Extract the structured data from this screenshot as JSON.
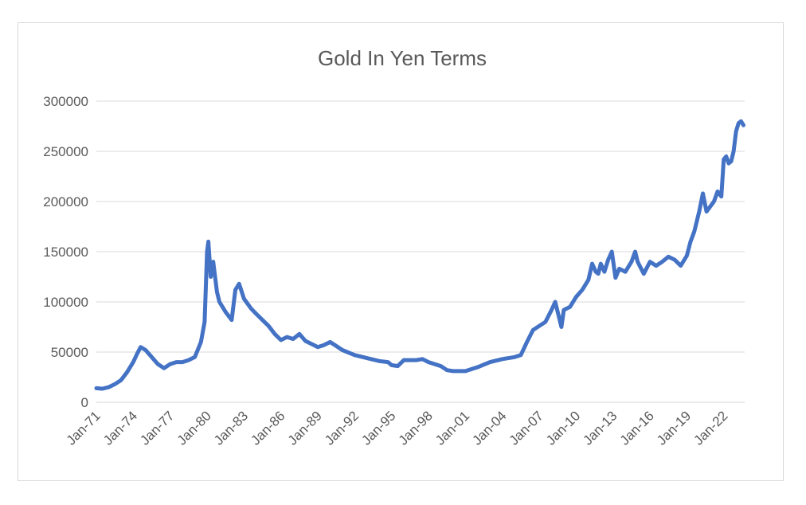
{
  "chart_data": {
    "type": "line",
    "title": "Gold In Yen Terms",
    "xlabel": "",
    "ylabel": "",
    "ylim": [
      0,
      300000
    ],
    "y_ticks": [
      "0",
      "50000",
      "100000",
      "150000",
      "200000",
      "250000",
      "300000"
    ],
    "x_ticks": [
      "Jan-71",
      "Jan-74",
      "Jan-77",
      "Jan-80",
      "Jan-83",
      "Jan-86",
      "Jan-89",
      "Jan-92",
      "Jan-95",
      "Jan-98",
      "Jan-01",
      "Jan-04",
      "Jan-07",
      "Jan-10",
      "Jan-13",
      "Jan-16",
      "Jan-19",
      "Jan-22"
    ],
    "grid": true,
    "legend": "none",
    "line_color": "#4472C4",
    "series": [
      {
        "x": [
          1971.0,
          1971.5,
          1972.0,
          1972.5,
          1973.0,
          1973.5,
          1974.0,
          1974.3,
          1974.6,
          1975.0,
          1975.5,
          1976.0,
          1976.5,
          1977.0,
          1977.5,
          1978.0,
          1978.5,
          1979.0,
          1979.5,
          1979.8,
          1980.0,
          1980.1,
          1980.3,
          1980.5,
          1980.8,
          1981.0,
          1981.5,
          1982.0,
          1982.3,
          1982.6,
          1983.0,
          1983.3,
          1983.6,
          1984.0,
          1984.5,
          1985.0,
          1985.5,
          1986.0,
          1986.5,
          1987.0,
          1987.5,
          1988.0,
          1988.5,
          1989.0,
          1989.5,
          1990.0,
          1990.5,
          1991.0,
          1992.0,
          1993.0,
          1994.0,
          1994.7,
          1995.0,
          1995.5,
          1996.0,
          1997.0,
          1997.5,
          1998.0,
          1999.0,
          1999.5,
          2000.0,
          2001.0,
          2002.0,
          2003.0,
          2004.0,
          2005.0,
          2005.5,
          2006.0,
          2006.5,
          2007.0,
          2007.5,
          2008.0,
          2008.3,
          2008.6,
          2008.8,
          2009.0,
          2009.5,
          2010.0,
          2010.5,
          2011.0,
          2011.3,
          2011.6,
          2011.8,
          2012.0,
          2012.3,
          2012.6,
          2012.9,
          2013.2,
          2013.5,
          2014.0,
          2014.5,
          2014.8,
          2015.0,
          2015.5,
          2016.0,
          2016.5,
          2017.0,
          2017.5,
          2018.0,
          2018.5,
          2019.0,
          2019.3,
          2019.6,
          2020.0,
          2020.3,
          2020.6,
          2020.9,
          2021.2,
          2021.5,
          2021.8,
          2022.0,
          2022.2,
          2022.4,
          2022.6,
          2022.8,
          2023.0,
          2023.2,
          2023.4,
          2023.6
        ],
        "values": [
          14000,
          13500,
          15000,
          18000,
          22000,
          30000,
          40000,
          48000,
          55000,
          52000,
          45000,
          38000,
          34000,
          38000,
          40000,
          40000,
          42000,
          45000,
          60000,
          80000,
          150000,
          160000,
          125000,
          140000,
          110000,
          100000,
          90000,
          82000,
          112000,
          118000,
          103000,
          98000,
          93000,
          88000,
          82000,
          76000,
          68000,
          62000,
          65000,
          63000,
          68000,
          61000,
          58000,
          55000,
          57000,
          60000,
          56000,
          52000,
          47000,
          44000,
          41000,
          40000,
          37000,
          36000,
          42000,
          42000,
          43000,
          40000,
          36000,
          32000,
          31000,
          31000,
          35000,
          40000,
          43000,
          45000,
          47000,
          60000,
          72000,
          76000,
          80000,
          92000,
          100000,
          85000,
          75000,
          92000,
          95000,
          105000,
          112000,
          122000,
          138000,
          130000,
          128000,
          138000,
          130000,
          142000,
          150000,
          124000,
          133000,
          130000,
          140000,
          150000,
          140000,
          128000,
          140000,
          136000,
          140000,
          145000,
          142000,
          136000,
          146000,
          160000,
          170000,
          190000,
          208000,
          190000,
          195000,
          200000,
          210000,
          205000,
          242000,
          245000,
          238000,
          240000,
          250000,
          270000,
          278000,
          280000,
          276000
        ]
      }
    ]
  }
}
